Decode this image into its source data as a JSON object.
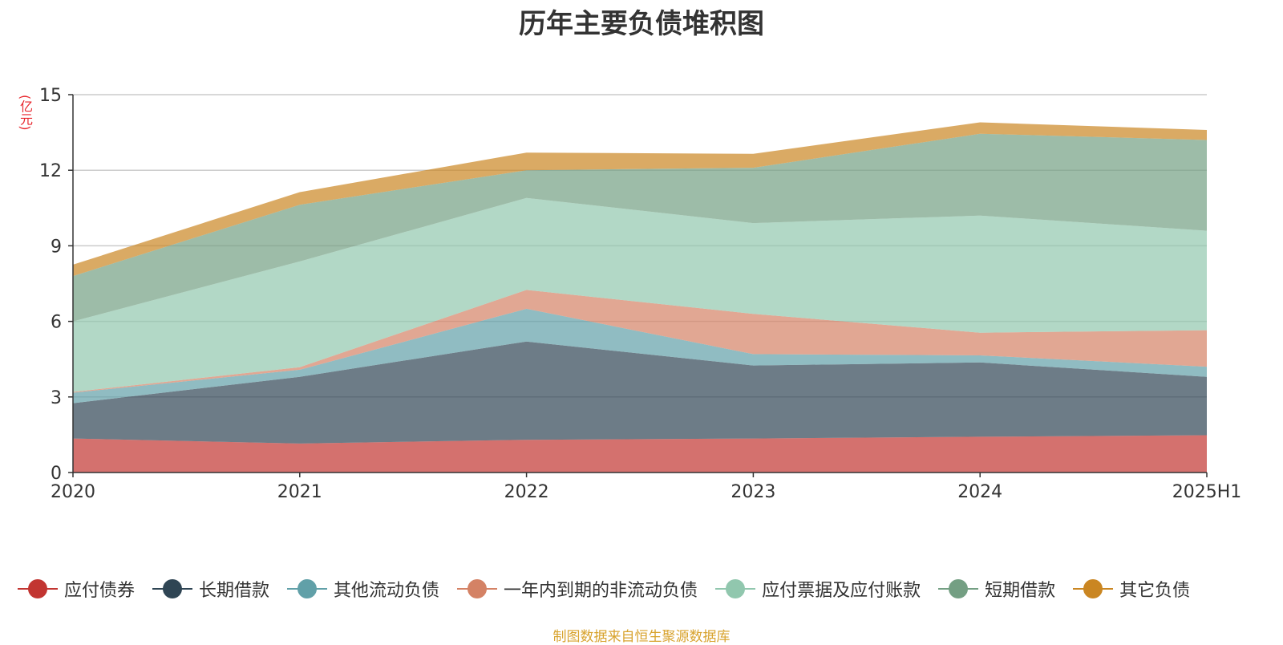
{
  "chart_data": {
    "type": "area",
    "stacked": true,
    "title": "历年主要负债堆积图",
    "ylabel": "(亿元)",
    "xlabel": "",
    "categories": [
      "2020",
      "2021",
      "2022",
      "2023",
      "2024",
      "2025H1"
    ],
    "ylim": [
      0,
      15
    ],
    "yticks": [
      0,
      3,
      6,
      9,
      12,
      15
    ],
    "grid": true,
    "legend_position": "bottom",
    "series": [
      {
        "name": "应付债券",
        "color": "#c23531",
        "values": [
          1.35,
          1.15,
          1.3,
          1.35,
          1.42,
          1.48
        ]
      },
      {
        "name": "长期借款",
        "color": "#2f4554",
        "values": [
          1.4,
          2.65,
          3.9,
          2.9,
          2.95,
          2.32
        ]
      },
      {
        "name": "其他流动负债",
        "color": "#61a0a8",
        "values": [
          0.42,
          0.28,
          1.3,
          0.45,
          0.28,
          0.4
        ]
      },
      {
        "name": "一年内到期的非流动负债",
        "color": "#d48265",
        "values": [
          0.03,
          0.1,
          0.75,
          1.6,
          0.9,
          1.45
        ]
      },
      {
        "name": "应付票据及应付账款",
        "color": "#91c7ae",
        "values": [
          2.8,
          4.2,
          3.65,
          3.6,
          4.65,
          3.95
        ]
      },
      {
        "name": "短期借款",
        "color": "#749f83",
        "values": [
          1.8,
          2.25,
          1.1,
          2.2,
          3.25,
          3.6
        ]
      },
      {
        "name": "其它负债",
        "color": "#ca8622",
        "values": [
          0.45,
          0.5,
          0.7,
          0.55,
          0.45,
          0.4
        ]
      }
    ]
  },
  "source_note": "制图数据来自恒生聚源数据库"
}
